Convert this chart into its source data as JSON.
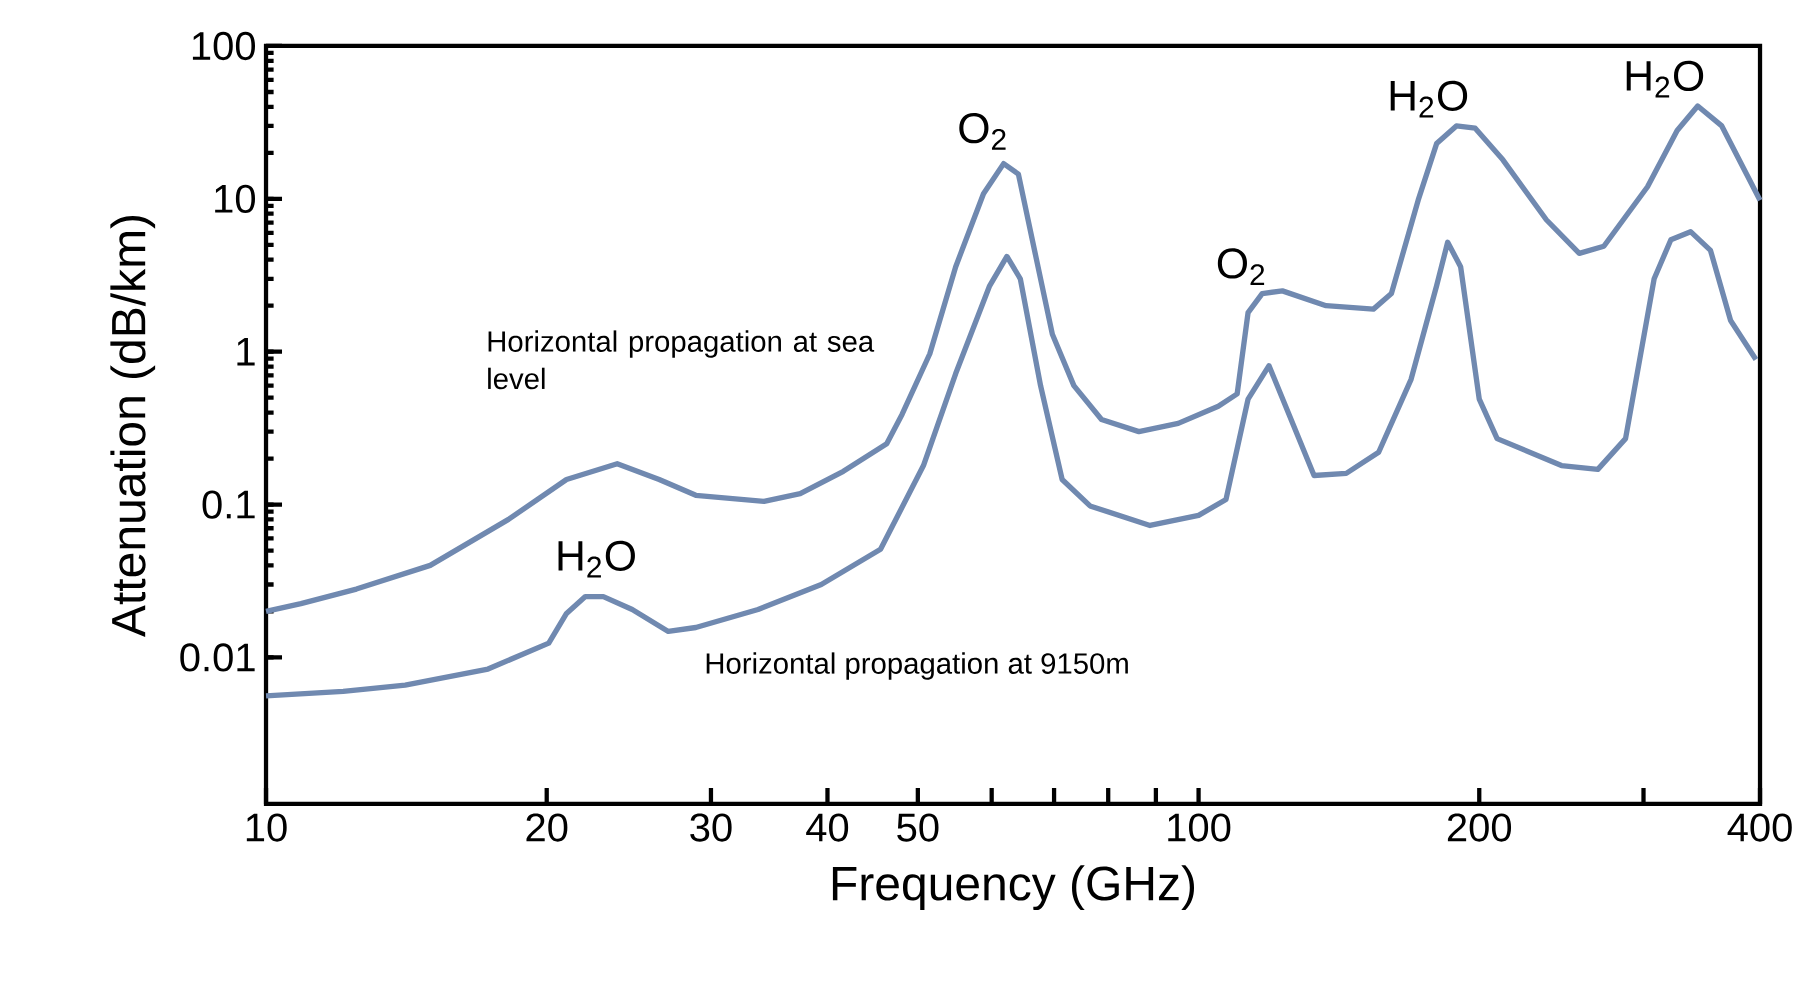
{
  "chart_data": {
    "type": "line",
    "xlabel": "Frequency (GHz)",
    "ylabel": "Attenuation (dB/km)",
    "log": "xy",
    "xlim": [
      10,
      400
    ],
    "ylim": [
      0.0011,
      100
    ],
    "xticks": [
      10,
      20,
      30,
      40,
      50,
      {
        "value": 60,
        "label": null
      },
      {
        "value": 70,
        "label": null
      },
      {
        "value": 80,
        "label": null
      },
      {
        "value": 90,
        "label": null
      },
      100,
      200,
      {
        "value": 300,
        "label": null
      },
      400
    ],
    "yticks": [
      0.01,
      0.1,
      1,
      10,
      100
    ],
    "series": [
      {
        "name": "Horizontal propagation at sea level",
        "color": "#7089b0",
        "x": [
          10,
          10.9,
          12.5,
          15.0,
          18.2,
          21.0,
          23.8,
          26.4,
          28.9,
          34.2,
          37.4,
          41.6,
          46.3,
          48.1,
          51.5,
          54.9,
          58.8,
          61.8,
          64.1,
          66.8,
          69.7,
          73.5,
          78.7,
          86.3,
          95.1,
          105,
          110,
          113,
          117,
          123,
          137,
          154,
          161,
          172,
          180,
          189,
          198,
          212,
          236,
          256,
          272,
          303,
          326,
          343,
          364,
          400
        ],
        "values": [
          0.02,
          0.0225,
          0.028,
          0.04,
          0.08,
          0.146,
          0.185,
          0.146,
          0.115,
          0.105,
          0.118,
          0.165,
          0.25,
          0.39,
          0.97,
          3.6,
          10.8,
          17,
          14.5,
          4.4,
          1.3,
          0.6,
          0.36,
          0.3,
          0.34,
          0.44,
          0.53,
          1.8,
          2.4,
          2.5,
          2.0,
          1.9,
          2.4,
          9.8,
          23,
          30,
          29,
          18,
          7.3,
          4.4,
          4.9,
          12,
          28,
          40.5,
          30,
          9.8
        ]
      },
      {
        "name": "Horizontal propagation at 9150m",
        "color": "#7089b0",
        "x": [
          10,
          12.1,
          14.1,
          17.3,
          20.1,
          21.0,
          22.0,
          23.0,
          24.7,
          27.0,
          28.9,
          33.7,
          39.4,
          45.6,
          50.7,
          54.9,
          59.7,
          62.3,
          64.4,
          67.7,
          71.4,
          76.5,
          88.7,
          100,
          107,
          113,
          119,
          125,
          133,
          144,
          156,
          169,
          180,
          185,
          191,
          200,
          209,
          245,
          268,
          287,
          308,
          321,
          337,
          354,
          372,
          396
        ],
        "values": [
          0.0056,
          0.006,
          0.0066,
          0.0084,
          0.0124,
          0.0194,
          0.025,
          0.025,
          0.0206,
          0.0148,
          0.0157,
          0.0206,
          0.03,
          0.051,
          0.18,
          0.72,
          2.7,
          4.2,
          3.0,
          0.6,
          0.146,
          0.098,
          0.073,
          0.085,
          0.108,
          0.49,
          0.81,
          0.39,
          0.155,
          0.16,
          0.22,
          0.66,
          2.7,
          5.2,
          3.6,
          0.49,
          0.27,
          0.18,
          0.17,
          0.27,
          3.0,
          5.4,
          6.1,
          4.6,
          1.6,
          0.89
        ]
      }
    ],
    "annotations": [
      {
        "text": "O$_{2}$",
        "x": 61.8,
        "y": 17
      },
      {
        "text": "O$_{2}$",
        "x": 117,
        "y": 2.4
      },
      {
        "text": "H$_{2}$O",
        "x": 22.0,
        "y": 0.025
      },
      {
        "text": "H$_{2}$O",
        "x": 189,
        "y": 30
      },
      {
        "text": "H$_{2}$O",
        "x": 343,
        "y": 40.5
      }
    ]
  }
}
